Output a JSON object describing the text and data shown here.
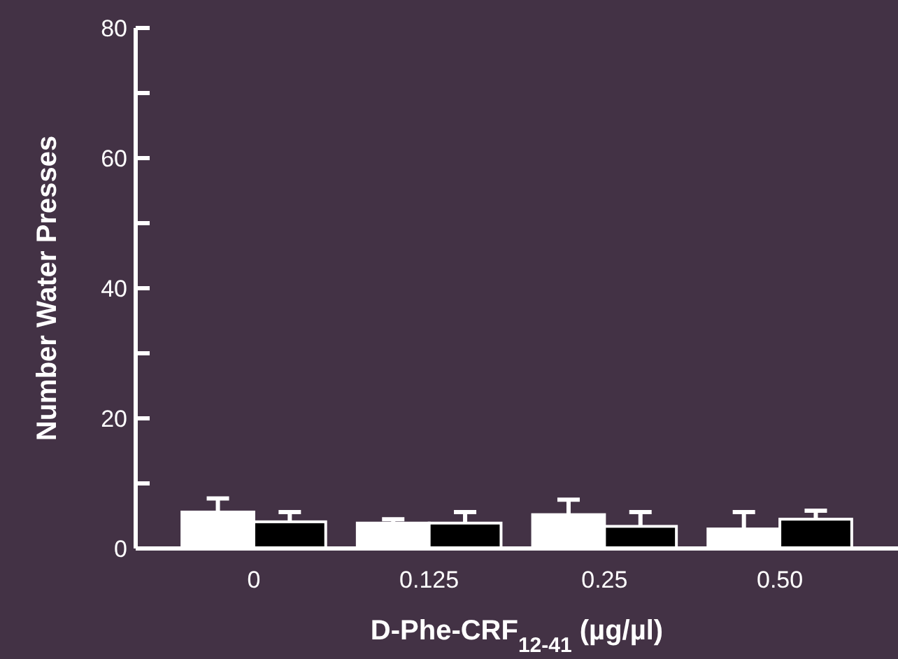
{
  "chart_data": {
    "type": "bar",
    "xlabel": "D-Phe-CRF$_{12-41}$ (µg/µl)",
    "ylabel": "Number Water Presses",
    "categories": [
      "0",
      "0.125",
      "0.25",
      "0.50"
    ],
    "series": [
      {
        "color": "#ffffff",
        "values": [
          5.6,
          3.9,
          5.2,
          3.0
        ],
        "errors": [
          [
            5.6,
            7.7
          ],
          [
            3.9,
            4.5
          ],
          [
            5.2,
            7.5
          ],
          [
            3.0,
            5.6
          ]
        ]
      },
      {
        "color": "#000000",
        "values": [
          4.1,
          3.9,
          3.4,
          4.5
        ],
        "errors": [
          [
            4.1,
            5.6
          ],
          [
            3.9,
            5.6
          ],
          [
            3.4,
            5.6
          ],
          [
            4.5,
            5.8
          ]
        ]
      }
    ],
    "ylim": [
      0,
      80
    ],
    "yticks": [
      0,
      {
        "value": 10,
        "label": null
      },
      20,
      {
        "value": 30,
        "label": null
      },
      40,
      {
        "value": 50,
        "label": null
      },
      60,
      {
        "value": 70,
        "label": null
      },
      80
    ]
  }
}
